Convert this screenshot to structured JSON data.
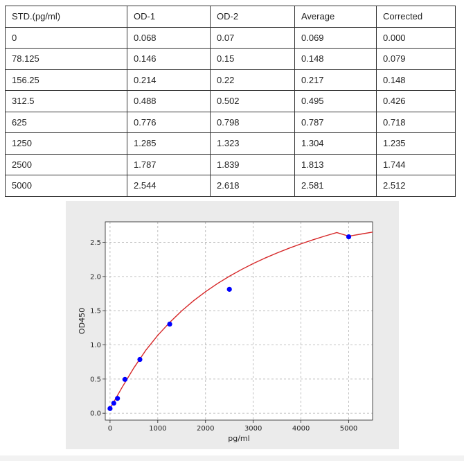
{
  "table": {
    "headers": [
      "STD.(pg/ml)",
      "OD-1",
      "OD-2",
      "Average",
      "Corrected"
    ],
    "rows": [
      [
        "0",
        "0.068",
        "0.07",
        "0.069",
        "0.000"
      ],
      [
        "78.125",
        "0.146",
        "0.15",
        "0.148",
        "0.079"
      ],
      [
        "156.25",
        "0.214",
        "0.22",
        "0.217",
        "0.148"
      ],
      [
        "312.5",
        "0.488",
        "0.502",
        "0.495",
        "0.426"
      ],
      [
        "625",
        "0.776",
        "0.798",
        "0.787",
        "0.718"
      ],
      [
        "1250",
        "1.285",
        "1.323",
        "1.304",
        "1.235"
      ],
      [
        "2500",
        "1.787",
        "1.839",
        "1.813",
        "1.744"
      ],
      [
        "5000",
        "2.544",
        "2.618",
        "2.581",
        "2.512"
      ]
    ]
  },
  "chart_data": {
    "type": "scatter",
    "title": "",
    "xlabel": "pg/ml",
    "ylabel": "OD450",
    "xlim": [
      -100,
      5500
    ],
    "ylim": [
      -0.1,
      2.8
    ],
    "xticks": [
      0,
      1000,
      2000,
      3000,
      4000,
      5000
    ],
    "yticks": [
      "0.0",
      "0.5",
      "1.0",
      "1.5",
      "2.0",
      "2.5"
    ],
    "grid": true,
    "series": [
      {
        "type": "scatter",
        "color": "#0000ff",
        "x": [
          0,
          78.125,
          156.25,
          312.5,
          625,
          1250,
          2500,
          5000
        ],
        "y": [
          0.069,
          0.148,
          0.217,
          0.495,
          0.787,
          1.304,
          1.813,
          2.581
        ]
      },
      {
        "type": "line",
        "color": "#d62728",
        "x": [
          0,
          250,
          500,
          750,
          1000,
          1250,
          1500,
          1750,
          2000,
          2250,
          2500,
          2750,
          3000,
          3250,
          3500,
          3750,
          4000,
          4250,
          4500,
          4750,
          5000,
          5250,
          5500
        ],
        "y": [
          0.07,
          0.376,
          0.665,
          0.922,
          1.14,
          1.329,
          1.497,
          1.646,
          1.778,
          1.897,
          2.004,
          2.101,
          2.19,
          2.271,
          2.345,
          2.414,
          2.478,
          2.537,
          2.592,
          2.643,
          2.59,
          2.62,
          2.65
        ]
      }
    ]
  }
}
